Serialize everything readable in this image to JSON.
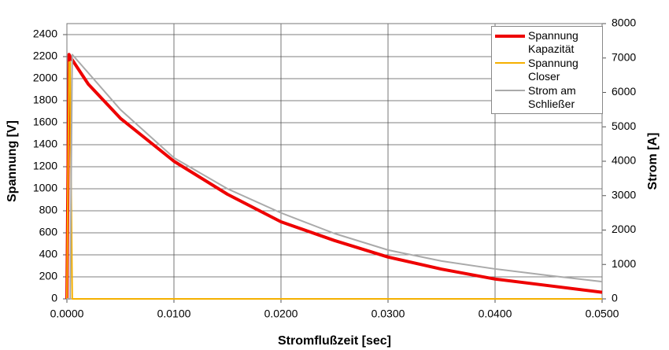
{
  "chart_data": {
    "type": "line",
    "xlabel": "Stromflußzeit [sec]",
    "ylabel": "Spannung [V]",
    "y2label": "Strom [A]",
    "xlim": [
      0,
      0.05
    ],
    "xticks": [
      {
        "value": 0,
        "label": "0.0000"
      },
      {
        "value": 0.01,
        "label": "0.0100"
      },
      {
        "value": 0.02,
        "label": "0.0200"
      },
      {
        "value": 0.03,
        "label": "0.0300"
      },
      {
        "value": 0.04,
        "label": "0.0400"
      },
      {
        "value": 0.05,
        "label": "0.0500"
      }
    ],
    "ylim": [
      0,
      2500
    ],
    "yticks": [
      0,
      200,
      400,
      600,
      800,
      1000,
      1200,
      1400,
      1600,
      1800,
      2000,
      2200,
      2400
    ],
    "y2lim": [
      0,
      8000
    ],
    "y2ticks": [
      0,
      1000,
      2000,
      3000,
      4000,
      5000,
      6000,
      7000,
      8000
    ],
    "grid": true,
    "legend": "upper right",
    "series": [
      {
        "name": "Spannung Kapazität",
        "color": "#ee0000",
        "width": 4,
        "x": [
          0,
          0.0002,
          0.0003,
          0.002,
          0.005,
          0.01,
          0.015,
          0.02,
          0.025,
          0.03,
          0.035,
          0.04,
          0.045,
          0.05
        ],
        "values": [
          0,
          2220,
          2200,
          1950,
          1640,
          1250,
          950,
          700,
          530,
          380,
          270,
          180,
          120,
          60
        ]
      },
      {
        "name": "Spannung Closer",
        "color": "#f5b000",
        "width": 2,
        "x": [
          0,
          0.0002,
          0.0003,
          0.0004,
          0.0005,
          0.05
        ],
        "values": [
          0,
          2150,
          2150,
          1000,
          0,
          0
        ]
      },
      {
        "name": "Strom am Schließer",
        "color": "#aaaaaa",
        "width": 2,
        "axis": "y2",
        "x": [
          0,
          0.0003,
          0.0005,
          0.005,
          0.01,
          0.015,
          0.02,
          0.025,
          0.03,
          0.035,
          0.04,
          0.045,
          0.05
        ],
        "values": [
          0,
          0,
          7100,
          5500,
          4100,
          3200,
          2500,
          1900,
          1420,
          1100,
          870,
          680,
          500
        ]
      }
    ]
  }
}
